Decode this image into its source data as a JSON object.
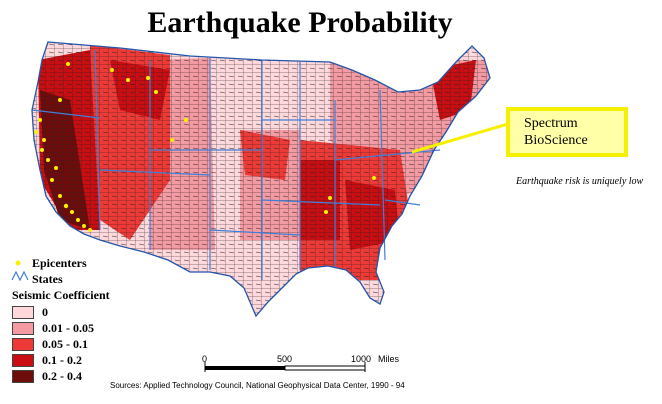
{
  "title": "Earthquake Probability",
  "callout": {
    "line1": "Spectrum",
    "line2": "BioScience"
  },
  "note": "Earthquake risk is uniquely low",
  "legend": {
    "epicenters": "Epicenters",
    "states": "States",
    "heading": "Seismic Coefficient",
    "classes": [
      {
        "label": "0",
        "color": "#ffd8dc"
      },
      {
        "label": "0.01 - 0.05",
        "color": "#f39aa2"
      },
      {
        "label": "0.05 - 0.1",
        "color": "#ee3a36"
      },
      {
        "label": "0.1 - 0.2",
        "color": "#c80e12"
      },
      {
        "label": "0.2 - 0.4",
        "color": "#6e0c0c"
      }
    ]
  },
  "scale": {
    "t0": "0",
    "t1": "500",
    "t2": "1000",
    "unit": "Miles"
  },
  "sources": "Sources: Applied Technology Council, National Geophysical Data Center, 1990 - 94",
  "colors": {
    "epicenter": "#f8f000",
    "state_line": "#3f7fd8",
    "callout_border": "#f6f000"
  }
}
